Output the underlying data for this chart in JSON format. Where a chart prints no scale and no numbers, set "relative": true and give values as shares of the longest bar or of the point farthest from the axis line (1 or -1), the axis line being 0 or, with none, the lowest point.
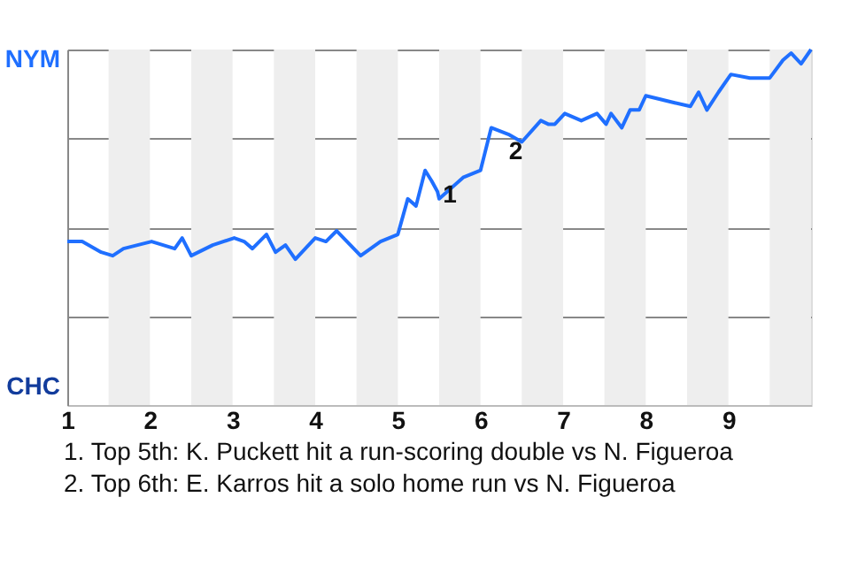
{
  "chart_data": {
    "type": "line",
    "relative": true,
    "x": [
      1.0,
      1.18,
      1.41,
      1.55,
      1.68,
      2.02,
      2.3,
      2.39,
      2.5,
      2.76,
      3.02,
      3.14,
      3.24,
      3.41,
      3.52,
      3.64,
      3.76,
      4.0,
      4.13,
      4.26,
      4.55,
      4.79,
      5.0,
      5.12,
      5.22,
      5.33,
      5.41,
      5.48,
      5.5,
      5.79,
      6.0,
      6.13,
      6.35,
      6.5,
      6.73,
      6.82,
      6.9,
      7.02,
      7.22,
      7.41,
      7.52,
      7.58,
      7.71,
      7.81,
      7.92,
      8.0,
      8.35,
      8.54,
      8.64,
      8.74,
      8.88,
      9.03,
      9.26,
      9.5,
      9.66,
      9.76,
      9.88,
      10.0
    ],
    "series": [
      {
        "color": "#1f6fff",
        "values": [
          0.46,
          0.46,
          0.43,
          0.42,
          0.44,
          0.46,
          0.44,
          0.47,
          0.42,
          0.45,
          0.47,
          0.46,
          0.44,
          0.48,
          0.43,
          0.45,
          0.41,
          0.47,
          0.46,
          0.49,
          0.42,
          0.46,
          0.48,
          0.58,
          0.56,
          0.66,
          0.63,
          0.6,
          0.58,
          0.64,
          0.66,
          0.78,
          0.76,
          0.74,
          0.8,
          0.79,
          0.79,
          0.82,
          0.8,
          0.82,
          0.79,
          0.82,
          0.78,
          0.83,
          0.83,
          0.87,
          0.85,
          0.84,
          0.88,
          0.83,
          0.88,
          0.93,
          0.92,
          0.92,
          0.97,
          0.99,
          0.96,
          1.0
        ]
      }
    ],
    "xlim": [
      1,
      10
    ],
    "xticks": [
      1,
      2,
      3,
      4,
      5,
      6,
      7,
      8,
      9
    ],
    "grid": "y",
    "bands": [
      {
        "axis": "x",
        "from": 1.5,
        "to": 2,
        "color": "#eeeeee"
      },
      {
        "axis": "x",
        "from": 2.5,
        "to": 3,
        "color": "#eeeeee"
      },
      {
        "axis": "x",
        "from": 3.5,
        "to": 4,
        "color": "#eeeeee"
      },
      {
        "axis": "x",
        "from": 4.5,
        "to": 5,
        "color": "#eeeeee"
      },
      {
        "axis": "x",
        "from": 5.5,
        "to": 6,
        "color": "#eeeeee"
      },
      {
        "axis": "x",
        "from": 6.5,
        "to": 7,
        "color": "#eeeeee"
      },
      {
        "axis": "x",
        "from": 7.5,
        "to": 8,
        "color": "#eeeeee"
      },
      {
        "axis": "x",
        "from": 8.5,
        "to": 9,
        "color": "#eeeeee"
      },
      {
        "axis": "x",
        "from": 9.5,
        "to": 10,
        "color": "#eeeeee"
      }
    ],
    "annotations": [
      "NYM",
      "CHC",
      {
        "text": "1",
        "x": 5.33,
        "y": 0.66
      },
      {
        "text": "2",
        "x": 6.13,
        "y": 0.78
      },
      "1. Top 5th: K. Puckett hit a run-scoring double vs N. Figueroa",
      "2. Top 6th: E. Karros hit a solo home run vs N. Figueroa"
    ]
  }
}
